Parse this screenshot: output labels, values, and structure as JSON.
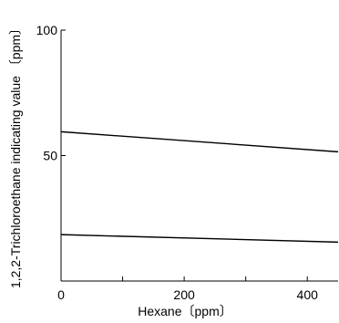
{
  "chart_data": {
    "type": "line",
    "xlabel": "Hexane〔ppm〕",
    "ylabel": "1,2,2-Trichloroethane indicating value 〔ppm〕",
    "xlim": [
      0,
      450
    ],
    "ylim": [
      0,
      100
    ],
    "xticks": [
      0,
      100,
      200,
      300,
      400
    ],
    "xtick_labels": [
      "0",
      "",
      "200",
      "",
      "400"
    ],
    "yticks": [
      0,
      50,
      100
    ],
    "ytick_labels": [
      "",
      "50",
      "100"
    ],
    "grid": false,
    "series": [
      {
        "x": [
          0,
          450
        ],
        "y": [
          59.5,
          51.5
        ]
      },
      {
        "x": [
          0,
          450
        ],
        "y": [
          18.5,
          15.5
        ]
      }
    ]
  }
}
